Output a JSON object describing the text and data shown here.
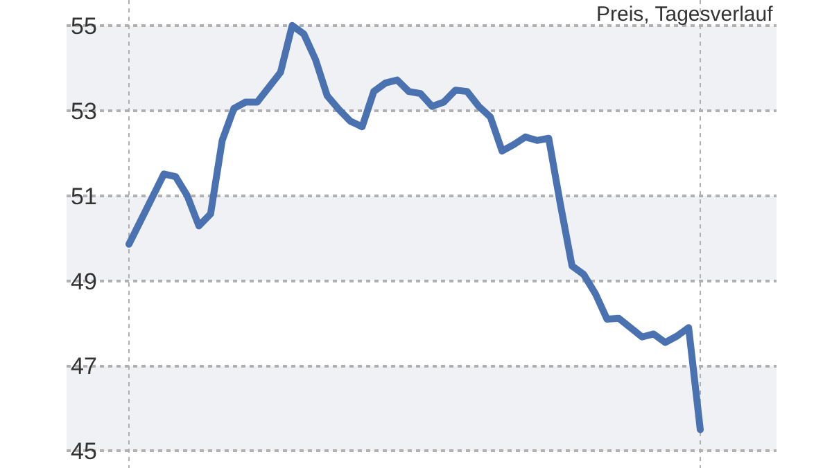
{
  "chart_data": {
    "type": "line",
    "categories": [
      null,
      null,
      null,
      null,
      null,
      null,
      null,
      null,
      null,
      null,
      null,
      null,
      null,
      null,
      null,
      null,
      null,
      null,
      null,
      null,
      null,
      null,
      null,
      null,
      null,
      null,
      null,
      null,
      null,
      null,
      null,
      null,
      null,
      null,
      null,
      null,
      null,
      null,
      null,
      null,
      null,
      null,
      null,
      null,
      null,
      null,
      null,
      null,
      null,
      null
    ],
    "series": [
      {
        "color": "#4a72b0",
        "values": [
          49.86,
          50.41,
          50.96,
          51.51,
          51.45,
          51.0,
          50.29,
          50.57,
          52.3,
          53.05,
          53.2,
          53.2,
          53.55,
          53.9,
          55.0,
          54.8,
          54.2,
          53.35,
          53.03,
          52.75,
          52.62,
          53.45,
          53.65,
          53.72,
          53.45,
          53.4,
          53.1,
          53.2,
          53.48,
          53.45,
          53.1,
          52.85,
          52.05,
          52.2,
          52.38,
          52.3,
          52.35,
          50.8,
          49.35,
          49.15,
          48.7,
          48.1,
          48.12,
          47.9,
          47.68,
          47.75,
          47.55,
          47.7,
          47.9,
          45.5
        ]
      }
    ],
    "ylim": [
      44.6,
      55.6
    ],
    "yticks": [
      45,
      47,
      49,
      51,
      53,
      55
    ],
    "bands": [
      {
        "axis": "y",
        "from": 53,
        "to": 55,
        "color": "#f0f1f4"
      },
      {
        "axis": "y",
        "from": 49,
        "to": 51,
        "color": "#f0f1f4"
      },
      {
        "axis": "y",
        "from": 45,
        "to": 47,
        "color": "#f0f1f4"
      }
    ],
    "annotations": [
      "Preis, Tagesverlauf"
    ],
    "grid": true,
    "marker": "none",
    "line_style": "solid"
  }
}
